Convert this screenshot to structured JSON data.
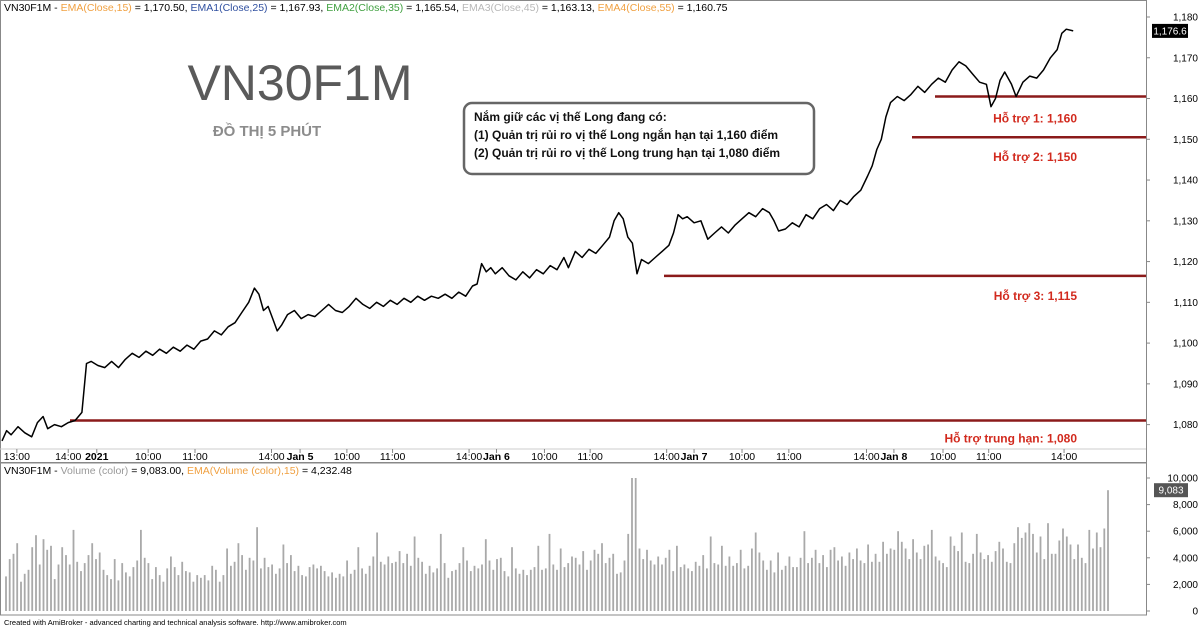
{
  "header": {
    "prefix": "VN30F1M - ",
    "items": [
      {
        "label": "EMA(Close,15)",
        "value": " = 1,170.50, ",
        "color": "#f0a040"
      },
      {
        "label": "EMA1(Close,25)",
        "value": " = 1,167.93, ",
        "color": "#3050a0"
      },
      {
        "label": "EMA2(Close,35)",
        "value": " = 1,165.54, ",
        "color": "#40a040"
      },
      {
        "label": "EMA3(Close,45)",
        "value": " = 1,163.13, ",
        "color": "#b8b8b8"
      },
      {
        "label": "EMA4(Close,55)",
        "value": " = 1,160.75",
        "color": "#f0a040"
      }
    ]
  },
  "volume_header": {
    "prefix": "VN30F1M - ",
    "volume_label": "Volume (color)",
    "volume_label_color": "#999999",
    "volume_value": " = 9,083.00, ",
    "ema_label": "EMA(Volume (color),15)",
    "ema_label_color": "#f0a040",
    "ema_value": " = 4,232.48"
  },
  "title": "VN30F1M",
  "subtitle": "ĐỒ THỊ 5 PHÚT",
  "note": {
    "line1": "Nắm giữ các vị thế Long đang có:",
    "line2": "(1) Quản trị rủi ro vị thế Long ngắn hạn tại 1,160 điểm",
    "line3": "(2) Quản trị rủi ro vị thế Long trung hạn tại 1,080 điểm"
  },
  "supports": [
    {
      "label": "Hỗ trợ 1: 1,160",
      "level": 1160.5,
      "x_from": 935
    },
    {
      "label": "Hỗ trợ 2: 1,150",
      "level": 1150.5,
      "x_from": 912
    },
    {
      "label": "Hỗ trợ 3: 1,115",
      "level": 1116.5,
      "x_from": 664
    },
    {
      "label": "Hỗ trợ trung hạn: 1,080",
      "level": 1081,
      "x_from": 70
    }
  ],
  "last_price_label": "1,176.6",
  "last_volume_label": "9,083",
  "credit": "Created with AmiBroker - advanced charting and technical analysis software. http://www.amibroker.com",
  "colors": {
    "support_line": "#8b1a1a",
    "support_text": "#d22a1e",
    "price_line": "#000000",
    "volume_bar": "#a9a9a9"
  },
  "chart_data": [
    {
      "type": "line",
      "title": "VN30F1M",
      "ylim": [
        1075,
        1180
      ],
      "yticks": [
        1080,
        1090,
        1100,
        1110,
        1120,
        1130,
        1140,
        1150,
        1160,
        1170,
        1180
      ],
      "ytick_labels": [
        "1,080",
        "1,090",
        "1,100",
        "1,110",
        "1,120",
        "1,130",
        "1,140",
        "1,150",
        "1,160",
        "1,170",
        "1,180"
      ],
      "x_tick_labels": [
        "13:00",
        "14:00",
        "2021",
        "10:00",
        "11:00",
        "14:00",
        "Jan 5",
        "10:00",
        "11:00",
        "14:00",
        "Jan 6",
        "10:00",
        "11:00",
        "14:00",
        "Jan 7",
        "10:00",
        "11:00",
        "14:00",
        "Jan 8",
        "10:00",
        "11:00",
        "14:00"
      ],
      "x_tick_bold": [
        false,
        false,
        true,
        false,
        false,
        false,
        true,
        false,
        false,
        false,
        true,
        false,
        false,
        false,
        true,
        false,
        false,
        false,
        true,
        false,
        false,
        false
      ],
      "x_tick_pos": [
        0.013,
        0.058,
        0.083,
        0.128,
        0.169,
        0.236,
        0.261,
        0.302,
        0.342,
        0.409,
        0.433,
        0.475,
        0.515,
        0.582,
        0.606,
        0.648,
        0.689,
        0.757,
        0.781,
        0.824,
        0.864,
        0.93
      ],
      "price_points": [
        [
          0.0,
          1076.0
        ],
        [
          0.004,
          1078.5
        ],
        [
          0.008,
          1077.5
        ],
        [
          0.014,
          1079.5
        ],
        [
          0.02,
          1078.0
        ],
        [
          0.026,
          1077.0
        ],
        [
          0.031,
          1080.5
        ],
        [
          0.036,
          1082.0
        ],
        [
          0.04,
          1079.0
        ],
        [
          0.046,
          1080.0
        ],
        [
          0.052,
          1079.5
        ],
        [
          0.058,
          1080.5
        ],
        [
          0.064,
          1081.0
        ],
        [
          0.07,
          1083.0
        ],
        [
          0.074,
          1095.0
        ],
        [
          0.078,
          1095.5
        ],
        [
          0.084,
          1094.5
        ],
        [
          0.09,
          1094.0
        ],
        [
          0.096,
          1095.5
        ],
        [
          0.102,
          1094.0
        ],
        [
          0.108,
          1096.0
        ],
        [
          0.114,
          1097.5
        ],
        [
          0.12,
          1096.5
        ],
        [
          0.126,
          1098.0
        ],
        [
          0.132,
          1097.0
        ],
        [
          0.138,
          1098.5
        ],
        [
          0.144,
          1097.5
        ],
        [
          0.15,
          1099.0
        ],
        [
          0.156,
          1098.0
        ],
        [
          0.162,
          1099.5
        ],
        [
          0.168,
          1098.5
        ],
        [
          0.174,
          1100.5
        ],
        [
          0.18,
          1101.0
        ],
        [
          0.186,
          1103.0
        ],
        [
          0.192,
          1102.0
        ],
        [
          0.198,
          1104.0
        ],
        [
          0.204,
          1105.0
        ],
        [
          0.21,
          1107.5
        ],
        [
          0.216,
          1110.0
        ],
        [
          0.221,
          1113.5
        ],
        [
          0.225,
          1112.0
        ],
        [
          0.229,
          1108.0
        ],
        [
          0.233,
          1109.0
        ],
        [
          0.237,
          1106.0
        ],
        [
          0.241,
          1103.0
        ],
        [
          0.245,
          1104.5
        ],
        [
          0.25,
          1107.0
        ],
        [
          0.256,
          1108.0
        ],
        [
          0.262,
          1106.0
        ],
        [
          0.268,
          1107.0
        ],
        [
          0.274,
          1106.5
        ],
        [
          0.28,
          1108.0
        ],
        [
          0.286,
          1109.5
        ],
        [
          0.292,
          1108.0
        ],
        [
          0.298,
          1107.5
        ],
        [
          0.304,
          1109.0
        ],
        [
          0.31,
          1111.0
        ],
        [
          0.316,
          1109.5
        ],
        [
          0.322,
          1108.5
        ],
        [
          0.328,
          1110.0
        ],
        [
          0.334,
          1109.0
        ],
        [
          0.34,
          1110.5
        ],
        [
          0.346,
          1109.5
        ],
        [
          0.352,
          1111.0
        ],
        [
          0.358,
          1110.0
        ],
        [
          0.364,
          1111.5
        ],
        [
          0.37,
          1110.5
        ],
        [
          0.376,
          1111.5
        ],
        [
          0.382,
          1111.0
        ],
        [
          0.388,
          1112.0
        ],
        [
          0.394,
          1111.0
        ],
        [
          0.4,
          1112.5
        ],
        [
          0.406,
          1111.5
        ],
        [
          0.412,
          1114.0
        ],
        [
          0.416,
          1114.5
        ],
        [
          0.42,
          1119.5
        ],
        [
          0.424,
          1117.5
        ],
        [
          0.428,
          1118.5
        ],
        [
          0.432,
          1117.0
        ],
        [
          0.438,
          1118.5
        ],
        [
          0.444,
          1116.5
        ],
        [
          0.45,
          1115.5
        ],
        [
          0.456,
          1117.5
        ],
        [
          0.462,
          1116.0
        ],
        [
          0.468,
          1118.0
        ],
        [
          0.474,
          1117.0
        ],
        [
          0.48,
          1119.0
        ],
        [
          0.486,
          1118.0
        ],
        [
          0.492,
          1121.0
        ],
        [
          0.496,
          1118.5
        ],
        [
          0.502,
          1122.5
        ],
        [
          0.508,
          1121.0
        ],
        [
          0.514,
          1123.0
        ],
        [
          0.52,
          1122.0
        ],
        [
          0.526,
          1124.0
        ],
        [
          0.532,
          1126.0
        ],
        [
          0.536,
          1130.0
        ],
        [
          0.54,
          1132.0
        ],
        [
          0.544,
          1130.5
        ],
        [
          0.548,
          1126.0
        ],
        [
          0.552,
          1124.5
        ],
        [
          0.556,
          1117.0
        ],
        [
          0.56,
          1120.5
        ],
        [
          0.566,
          1119.5
        ],
        [
          0.572,
          1121.0
        ],
        [
          0.578,
          1122.5
        ],
        [
          0.584,
          1124.0
        ],
        [
          0.588,
          1127.0
        ],
        [
          0.592,
          1131.5
        ],
        [
          0.596,
          1130.5
        ],
        [
          0.6,
          1131.0
        ],
        [
          0.606,
          1129.5
        ],
        [
          0.612,
          1130.0
        ],
        [
          0.618,
          1125.5
        ],
        [
          0.624,
          1127.0
        ],
        [
          0.63,
          1128.5
        ],
        [
          0.636,
          1127.0
        ],
        [
          0.642,
          1129.0
        ],
        [
          0.648,
          1130.5
        ],
        [
          0.654,
          1132.0
        ],
        [
          0.66,
          1131.0
        ],
        [
          0.666,
          1133.0
        ],
        [
          0.672,
          1132.0
        ],
        [
          0.676,
          1130.0
        ],
        [
          0.68,
          1127.5
        ],
        [
          0.686,
          1128.0
        ],
        [
          0.692,
          1129.5
        ],
        [
          0.698,
          1128.5
        ],
        [
          0.704,
          1131.5
        ],
        [
          0.71,
          1130.5
        ],
        [
          0.716,
          1133.0
        ],
        [
          0.722,
          1134.0
        ],
        [
          0.728,
          1132.5
        ],
        [
          0.734,
          1135.0
        ],
        [
          0.74,
          1134.0
        ],
        [
          0.746,
          1136.0
        ],
        [
          0.752,
          1137.5
        ],
        [
          0.758,
          1141.0
        ],
        [
          0.762,
          1143.5
        ],
        [
          0.766,
          1147.5
        ],
        [
          0.77,
          1150.0
        ],
        [
          0.774,
          1155.5
        ],
        [
          0.778,
          1159.0
        ],
        [
          0.784,
          1160.5
        ],
        [
          0.79,
          1159.5
        ],
        [
          0.796,
          1161.0
        ],
        [
          0.802,
          1163.0
        ],
        [
          0.808,
          1161.5
        ],
        [
          0.814,
          1163.5
        ],
        [
          0.82,
          1165.0
        ],
        [
          0.826,
          1164.0
        ],
        [
          0.832,
          1167.0
        ],
        [
          0.838,
          1169.0
        ],
        [
          0.844,
          1168.0
        ],
        [
          0.85,
          1166.0
        ],
        [
          0.856,
          1164.0
        ],
        [
          0.862,
          1163.5
        ],
        [
          0.866,
          1158.0
        ],
        [
          0.87,
          1160.0
        ],
        [
          0.874,
          1164.5
        ],
        [
          0.878,
          1166.5
        ],
        [
          0.884,
          1163.5
        ],
        [
          0.888,
          1160.5
        ],
        [
          0.894,
          1164.0
        ],
        [
          0.9,
          1165.5
        ],
        [
          0.906,
          1165.0
        ],
        [
          0.912,
          1167.0
        ],
        [
          0.918,
          1170.0
        ],
        [
          0.924,
          1172.0
        ],
        [
          0.928,
          1176.0
        ],
        [
          0.932,
          1177.0
        ],
        [
          0.938,
          1176.6
        ]
      ]
    },
    {
      "type": "bar",
      "title": "VN30F1M - Volume (color)",
      "ylim": [
        0,
        10000
      ],
      "yticks": [
        0,
        2000,
        4000,
        6000,
        8000,
        10000
      ],
      "ytick_labels": [
        "0",
        "2,000",
        "4,000",
        "6,000",
        "8,000",
        "10,000"
      ],
      "values": [
        2600,
        3900,
        4300,
        5100,
        2200,
        2800,
        3100,
        4800,
        5700,
        3500,
        5400,
        4600,
        4900,
        2400,
        3500,
        4800,
        4200,
        3500,
        6100,
        3700,
        3000,
        3600,
        4200,
        5100,
        3900,
        4400,
        3100,
        2700,
        2400,
        3900,
        2300,
        3600,
        2900,
        2600,
        3300,
        3800,
        6100,
        4000,
        3600,
        2400,
        3300,
        2700,
        2200,
        3200,
        4100,
        3300,
        2700,
        3700,
        3000,
        2900,
        2200,
        2700,
        2500,
        2700,
        2300,
        3400,
        3100,
        2200,
        2700,
        4700,
        3400,
        3700,
        5100,
        4200,
        3100,
        4000,
        3800,
        6300,
        3200,
        4000,
        3300,
        3500,
        2800,
        3200,
        5000,
        3600,
        4200,
        3000,
        3400,
        2700,
        2600,
        3300,
        3500,
        3200,
        3400,
        3000,
        2600,
        2900,
        2500,
        2800,
        2600,
        3800,
        2800,
        3100,
        4800,
        3200,
        2800,
        3400,
        4100,
        5900,
        3700,
        3500,
        4100,
        3600,
        3700,
        4500,
        3600,
        4300,
        3400,
        5600,
        4000,
        3700,
        2800,
        3400,
        2900,
        3200,
        5800,
        3600,
        2500,
        3000,
        3100,
        3600,
        4800,
        3800,
        3000,
        3400,
        3200,
        3500,
        5400,
        3800,
        3100,
        3900,
        4000,
        3000,
        2600,
        4800,
        3200,
        2800,
        3100,
        2700,
        3100,
        3300,
        4900,
        3100,
        3200,
        5800,
        3500,
        3100,
        4700,
        3300,
        3600,
        4100,
        4000,
        3500,
        4500,
        3100,
        3800,
        4600,
        4300,
        5100,
        3600,
        4000,
        4300,
        2800,
        2900,
        3800,
        5800,
        10500,
        10800,
        4700,
        3900,
        4600,
        3800,
        3500,
        4100,
        3500,
        4000,
        4600,
        3000,
        4900,
        3300,
        3500,
        3200,
        3000,
        3700,
        3400,
        4200,
        3200,
        5600,
        3600,
        3500,
        4900,
        3400,
        4100,
        3400,
        3600,
        4600,
        3200,
        3400,
        4700,
        5900,
        4400,
        3800,
        3100,
        3800,
        2900,
        4400,
        3100,
        3400,
        4100,
        3300,
        3300,
        4000,
        6000,
        3600,
        4000,
        4600,
        3600,
        4200,
        3300,
        4600,
        4800,
        3800,
        4100,
        3400,
        4400,
        3900,
        4700,
        3800,
        3600,
        5000,
        3700,
        4300,
        3700,
        5200,
        4300,
        4700,
        4600,
        6000,
        5200,
        4700,
        3900,
        5400,
        4400,
        3900,
        4900,
        5000,
        6100,
        4100,
        3800,
        3600,
        3300,
        5600,
        4900,
        4500,
        5900,
        3700,
        3600,
        4300,
        5800,
        4400,
        3900,
        4200,
        3700,
        4500,
        5200,
        4700,
        3700,
        3600,
        5100,
        6300,
        5500,
        5900,
        6600,
        5800,
        4400,
        5600,
        3900,
        6600,
        4300,
        4300,
        5300,
        6200,
        5600,
        5000,
        3900,
        5000,
        4000,
        3600,
        6100,
        4700,
        5900,
        4800,
        6200,
        9083
      ]
    }
  ]
}
